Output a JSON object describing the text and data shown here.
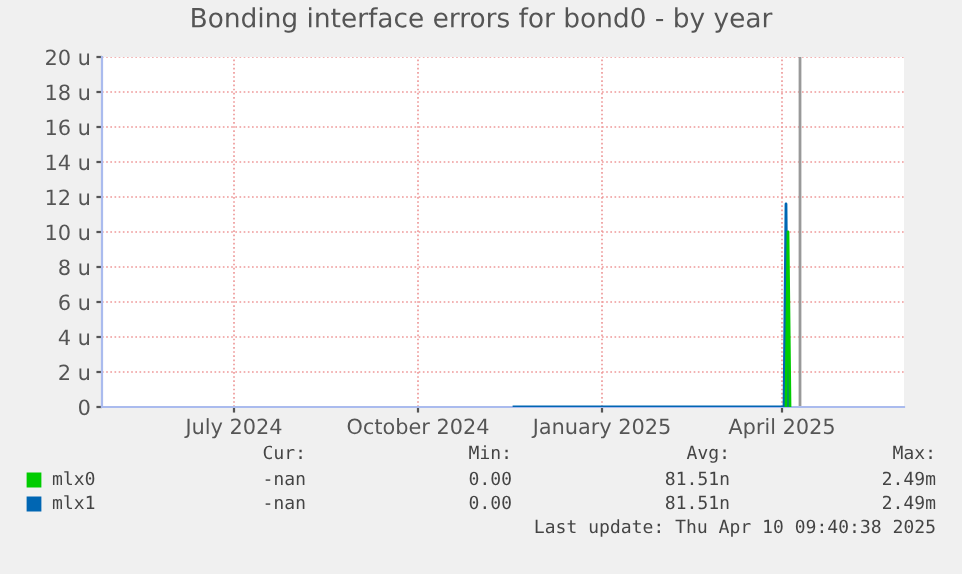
{
  "chart_data": {
    "type": "line",
    "title": "Bonding interface errors for bond0 - by year",
    "xlim": [
      "2024-04-26",
      "2025-06-01"
    ],
    "xticks": [
      {
        "value": "2024-07-01",
        "label": "July 2024"
      },
      {
        "value": "2024-10-01",
        "label": "October 2024"
      },
      {
        "value": "2025-01-01",
        "label": "January 2025"
      },
      {
        "value": "2025-04-01",
        "label": "April 2025"
      }
    ],
    "ylim": [
      0,
      20
    ],
    "yticks": [
      {
        "value": 0,
        "label": "0"
      },
      {
        "value": 2,
        "label": "2 u"
      },
      {
        "value": 4,
        "label": "4 u"
      },
      {
        "value": 6,
        "label": "6 u"
      },
      {
        "value": 8,
        "label": "8 u"
      },
      {
        "value": 10,
        "label": "10 u"
      },
      {
        "value": 12,
        "label": "12 u"
      },
      {
        "value": 14,
        "label": "14 u"
      },
      {
        "value": 16,
        "label": "16 u"
      },
      {
        "value": 18,
        "label": "18 u"
      },
      {
        "value": 20,
        "label": "20 u"
      }
    ],
    "series": [
      {
        "name": "mlx0",
        "color": "#00cc00",
        "x": [
          "2025-04-03",
          "2025-04-04",
          "2025-04-05"
        ],
        "values": [
          0,
          10,
          0
        ]
      },
      {
        "name": "mlx1",
        "color": "#0066b3",
        "x": [
          "2024-11-18",
          "2025-04-02",
          "2025-04-03",
          "2025-04-04"
        ],
        "values": [
          0,
          0,
          11.6,
          0
        ]
      }
    ],
    "ref_lines": [
      {
        "axis": "x",
        "value": "2025-04-10",
        "color": "#999999"
      }
    ],
    "grid": true,
    "legend": "bottom",
    "annotations": [
      "Cur:",
      "Min:",
      "Avg:",
      "Max:",
      "-nan",
      "0.00",
      "81.51n",
      "2.49m",
      "-nan",
      "0.00",
      "81.51n",
      "2.49m",
      "Last update: Thu Apr 10 09:40:38 2025"
    ]
  }
}
